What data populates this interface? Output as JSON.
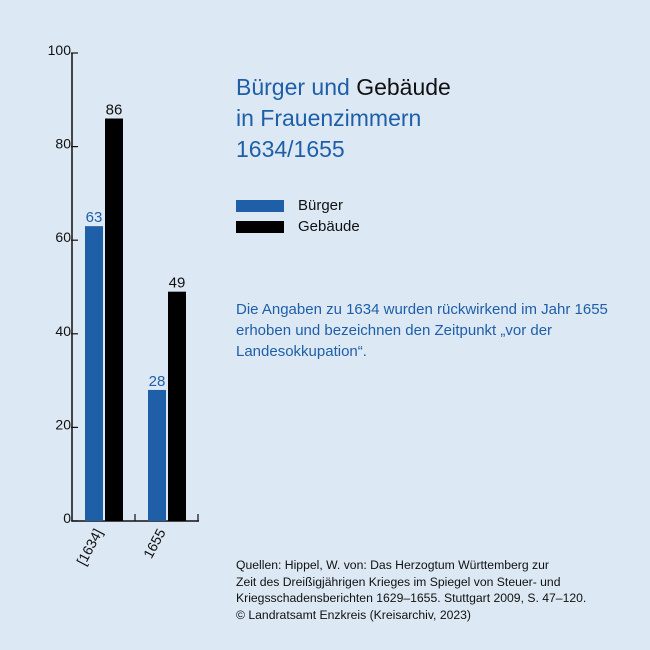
{
  "title": {
    "line1_blue": "Bürger und",
    "line1_dark": "Gebäude",
    "line2": "in Frauenzimmern",
    "line3": "1634/1655"
  },
  "note": "Die Angaben zu 1634 wurden rückwirkend im Jahr 1655 erhoben und bezeichnen den Zeitpunkt „vor der Landesokkupation“.",
  "sources": [
    "Quellen: Hippel, W. von: Das Herzogtum Württemberg zur",
    "Zeit des Dreißigjährigen Krieges im Spiegel von Steuer- und",
    "Kriegsschadensberichten 1629–1655. Stuttgart 2009, S. 47–120.",
    "© Landratsamt Enzkreis (Kreisarchiv, 2023)"
  ],
  "colors": {
    "background": "#dce8f4",
    "buerger": "#1f5fa8",
    "gebaeude": "#000000",
    "axis": "#111111"
  },
  "chart_data": {
    "type": "bar",
    "categories": [
      "[1634]",
      "1655"
    ],
    "series": [
      {
        "name": "Bürger",
        "values": [
          63,
          28
        ],
        "color": "#1f5fa8"
      },
      {
        "name": "Gebäude",
        "values": [
          86,
          49
        ],
        "color": "#000000"
      }
    ],
    "ylim": [
      0,
      100
    ],
    "yticks": [
      0,
      20,
      40,
      60,
      80,
      100
    ],
    "grid": false,
    "legend_position": "right"
  }
}
